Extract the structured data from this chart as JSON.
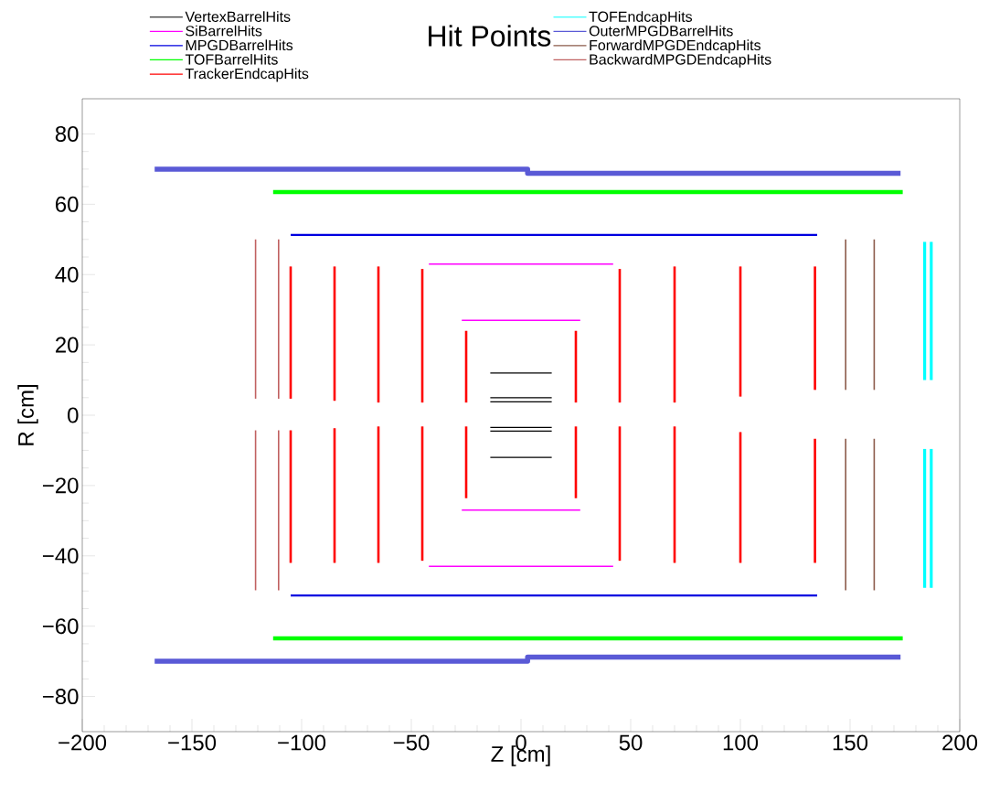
{
  "chart_data": {
    "type": "line",
    "title": "Hit Points",
    "xlabel": "Z [cm]",
    "ylabel": "R [cm]",
    "legend": "top",
    "xlim": [
      -200,
      200
    ],
    "ylim": [
      -90,
      90
    ],
    "xticks": [
      {
        "value": -200,
        "label": "−200"
      },
      {
        "value": -150,
        "label": "−150"
      },
      {
        "value": -100,
        "label": "−100"
      },
      {
        "value": -50,
        "label": "−50"
      },
      0,
      50,
      100,
      150,
      200
    ],
    "yticks": [
      {
        "value": -80,
        "label": "−80"
      },
      {
        "value": -60,
        "label": "−60"
      },
      {
        "value": -40,
        "label": "−40"
      },
      {
        "value": -20,
        "label": "−20"
      },
      0,
      20,
      40,
      60,
      80
    ],
    "series": [
      {
        "name": "VertexBarrelHits",
        "color": "#000000",
        "x": [
          -14,
          14
        ],
        "values": [
          12,
          12
        ]
      },
      {
        "color": "#000000",
        "x": [
          -14,
          14
        ],
        "values": [
          5,
          5
        ]
      },
      {
        "color": "#000000",
        "x": [
          -14,
          14
        ],
        "values": [
          3.8,
          3.8
        ]
      },
      {
        "color": "#000000",
        "x": [
          -14,
          14
        ],
        "values": [
          -3.5,
          -3.5
        ]
      },
      {
        "color": "#000000",
        "x": [
          -14,
          14
        ],
        "values": [
          -4.5,
          -4.5
        ]
      },
      {
        "color": "#000000",
        "x": [
          -14,
          14
        ],
        "values": [
          -12,
          -12
        ]
      },
      {
        "name": "SiBarrelHits",
        "color": "#ff00ff",
        "x": [
          -42,
          42
        ],
        "values": [
          43,
          43
        ]
      },
      {
        "color": "#ff00ff",
        "x": [
          -27,
          27
        ],
        "values": [
          27,
          27
        ]
      },
      {
        "color": "#ff00ff",
        "x": [
          -27,
          27
        ],
        "values": [
          -27,
          -27
        ]
      },
      {
        "color": "#ff00ff",
        "x": [
          -42,
          42
        ],
        "values": [
          -43,
          -43
        ]
      },
      {
        "name": "MPGDBarrelHits",
        "color": "#0000e0",
        "x": [
          -105,
          135
        ],
        "values": [
          51.3,
          51.3
        ]
      },
      {
        "color": "#0000e0",
        "x": [
          -105,
          135
        ],
        "values": [
          -51.3,
          -51.3
        ]
      },
      {
        "name": "TOFBarrelHits",
        "color": "#00ff00",
        "x": [
          -113,
          174
        ],
        "values": [
          63.5,
          63.5
        ]
      },
      {
        "color": "#00ff00",
        "x": [
          -113,
          174
        ],
        "values": [
          -63.5,
          -63.5
        ]
      },
      {
        "name": "TrackerEndcapHits",
        "color": "#ff0000",
        "x": [
          -105,
          -105
        ],
        "values": [
          4.7,
          42.3
        ]
      },
      {
        "color": "#ff0000",
        "x": [
          -105,
          -105
        ],
        "values": [
          -4.3,
          -42
        ]
      },
      {
        "color": "#ff0000",
        "x": [
          -85,
          -85
        ],
        "values": [
          4.1,
          42.3
        ]
      },
      {
        "color": "#ff0000",
        "x": [
          -85,
          -85
        ],
        "values": [
          -3.7,
          -42
        ]
      },
      {
        "color": "#ff0000",
        "x": [
          -65,
          -65
        ],
        "values": [
          3.6,
          42.3
        ]
      },
      {
        "color": "#ff0000",
        "x": [
          -65,
          -65
        ],
        "values": [
          -3.2,
          -42
        ]
      },
      {
        "color": "#ff0000",
        "x": [
          -45,
          -45
        ],
        "values": [
          3.6,
          41.6
        ]
      },
      {
        "color": "#ff0000",
        "x": [
          -45,
          -45
        ],
        "values": [
          -3.2,
          -41.4
        ]
      },
      {
        "color": "#ff0000",
        "x": [
          -25,
          -25
        ],
        "values": [
          3.6,
          24
        ]
      },
      {
        "color": "#ff0000",
        "x": [
          -25,
          -25
        ],
        "values": [
          -3.2,
          -23.6
        ]
      },
      {
        "color": "#ff0000",
        "x": [
          25,
          25
        ],
        "values": [
          3.6,
          24
        ]
      },
      {
        "color": "#ff0000",
        "x": [
          25,
          25
        ],
        "values": [
          -3.2,
          -23.6
        ]
      },
      {
        "color": "#ff0000",
        "x": [
          45,
          45
        ],
        "values": [
          3.6,
          41.6
        ]
      },
      {
        "color": "#ff0000",
        "x": [
          45,
          45
        ],
        "values": [
          -3.2,
          -41.4
        ]
      },
      {
        "color": "#ff0000",
        "x": [
          70,
          70
        ],
        "values": [
          3.6,
          42.3
        ]
      },
      {
        "color": "#ff0000",
        "x": [
          70,
          70
        ],
        "values": [
          -3.2,
          -42
        ]
      },
      {
        "color": "#ff0000",
        "x": [
          100,
          100
        ],
        "values": [
          5.3,
          42.3
        ]
      },
      {
        "color": "#ff0000",
        "x": [
          100,
          100
        ],
        "values": [
          -4.8,
          -42
        ]
      },
      {
        "color": "#ff0000",
        "x": [
          134,
          134
        ],
        "values": [
          7.2,
          42.3
        ]
      },
      {
        "color": "#ff0000",
        "x": [
          134,
          134
        ],
        "values": [
          -6.7,
          -42
        ]
      },
      {
        "name": "TOFEndcapHits",
        "color": "#00ffff",
        "x": [
          184,
          184
        ],
        "values": [
          10,
          49.3
        ]
      },
      {
        "color": "#00ffff",
        "x": [
          184,
          184
        ],
        "values": [
          -9.6,
          -49.1
        ]
      },
      {
        "color": "#00ffff",
        "x": [
          187,
          187
        ],
        "values": [
          10,
          49.3
        ]
      },
      {
        "color": "#00ffff",
        "x": [
          187,
          187
        ],
        "values": [
          -9.6,
          -49.1
        ]
      },
      {
        "name": "OuterMPGDBarrelHits",
        "color": "#5a5ad6",
        "x": [
          -167,
          3,
          3,
          173
        ],
        "values": [
          70,
          70,
          68.8,
          68.8
        ]
      },
      {
        "color": "#5a5ad6",
        "x": [
          -167,
          3,
          3,
          173
        ],
        "values": [
          -70,
          -70,
          -68.8,
          -68.8
        ]
      },
      {
        "name": "ForwardMPGDEndcapHits",
        "color": "#8b5a4a",
        "x": [
          148,
          148
        ],
        "values": [
          7.2,
          50
        ]
      },
      {
        "color": "#8b5a4a",
        "x": [
          148,
          148
        ],
        "values": [
          -6.7,
          -49.8
        ]
      },
      {
        "color": "#8b5a4a",
        "x": [
          161,
          161
        ],
        "values": [
          7.2,
          50
        ]
      },
      {
        "color": "#8b5a4a",
        "x": [
          161,
          161
        ],
        "values": [
          -6.7,
          -49.8
        ]
      },
      {
        "name": "BackwardMPGDEndcapHits",
        "color": "#c06060",
        "x": [
          -121,
          -121
        ],
        "values": [
          4.7,
          50
        ]
      },
      {
        "color": "#c06060",
        "x": [
          -121,
          -121
        ],
        "values": [
          -4.3,
          -49.8
        ]
      },
      {
        "color": "#c06060",
        "x": [
          -110.5,
          -110.5
        ],
        "values": [
          4.7,
          50
        ]
      },
      {
        "color": "#c06060",
        "x": [
          -110.5,
          -110.5
        ],
        "values": [
          -4.3,
          -49.8
        ]
      }
    ]
  }
}
